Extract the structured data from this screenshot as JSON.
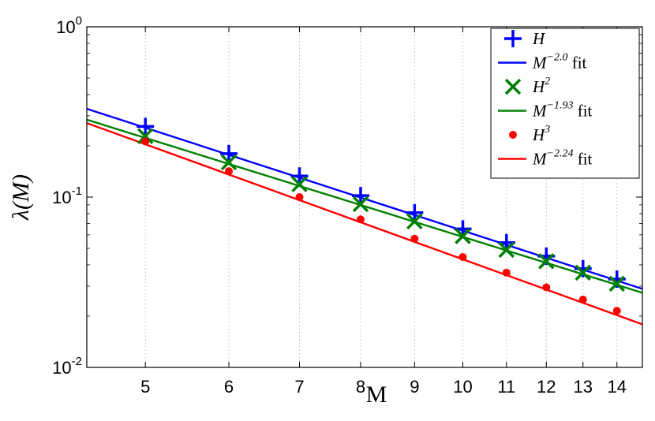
{
  "chart_data": {
    "type": "line",
    "xlabel": "M",
    "ylabel": "λ(M)",
    "x_scale": "log",
    "y_scale": "log",
    "xlim": [
      4.4,
      14.8
    ],
    "ylim": [
      0.01,
      1
    ],
    "grid": "x-dotted",
    "legend_position": "top-right",
    "x_ticks": [
      5,
      6,
      7,
      8,
      9,
      10,
      11,
      12,
      13,
      14
    ],
    "x_tick_labels": [
      "5",
      "6",
      "7",
      "8",
      "9",
      "10",
      "11",
      "12",
      "13",
      "14"
    ],
    "y_ticks": [
      0.01,
      0.1,
      1
    ],
    "y_tick_labels": [
      {
        "base": "10",
        "exp": "-2"
      },
      {
        "base": "10",
        "exp": "-1"
      },
      {
        "base": "10",
        "exp": "0"
      }
    ],
    "series": [
      {
        "name": "H",
        "name_sup": "",
        "kind": "markers",
        "marker": "plus",
        "color": "#0000ff",
        "x": [
          5,
          6,
          7,
          8,
          9,
          10,
          11,
          12,
          13,
          14
        ],
        "y": [
          0.26,
          0.18,
          0.133,
          0.102,
          0.081,
          0.065,
          0.054,
          0.045,
          0.038,
          0.033
        ]
      },
      {
        "name": "M",
        "name_sup": "−2.0",
        "name_suffix": " fit",
        "kind": "line",
        "color": "#0000ff",
        "x": [
          4.4,
          14.8
        ],
        "y": [
          0.33,
          0.0289
        ]
      },
      {
        "name": "H",
        "name_sup": "2",
        "kind": "markers",
        "marker": "x",
        "color": "#008000",
        "x": [
          5,
          6,
          7,
          8,
          9,
          10,
          11,
          12,
          13,
          14
        ],
        "y": [
          0.228,
          0.16,
          0.119,
          0.091,
          0.072,
          0.059,
          0.049,
          0.042,
          0.036,
          0.031
        ]
      },
      {
        "name": "M",
        "name_sup": "−1.93",
        "name_suffix": " fit",
        "kind": "line",
        "color": "#008000",
        "x": [
          4.4,
          14.8
        ],
        "y": [
          0.285,
          0.0274
        ]
      },
      {
        "name": "H",
        "name_sup": "3",
        "kind": "markers",
        "marker": "dot",
        "color": "#ff0000",
        "x": [
          5,
          6,
          7,
          8,
          9,
          10,
          11,
          12,
          13,
          14
        ],
        "y": [
          0.212,
          0.142,
          0.1,
          0.074,
          0.057,
          0.0445,
          0.036,
          0.0295,
          0.025,
          0.0215
        ]
      },
      {
        "name": "M",
        "name_sup": "−2.24",
        "name_suffix": " fit",
        "kind": "line",
        "color": "#ff0000",
        "x": [
          4.4,
          14.8
        ],
        "y": [
          0.272,
          0.0179
        ]
      }
    ]
  }
}
